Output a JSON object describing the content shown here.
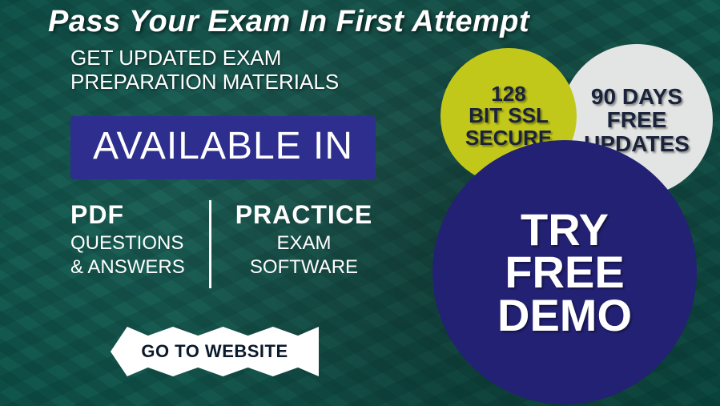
{
  "colors": {
    "accent_blue": "#2e2e8f",
    "demo_blue": "#232173",
    "ssl_yellow": "#c2c81a",
    "updates_gray": "#e2e5e3",
    "text_white": "#ffffff",
    "text_dark_navy": "#1a233b",
    "ribbon_white": "#ffffff",
    "bg_dark_teal": "#0a3a3a"
  },
  "headline": "Pass Your Exam In First Attempt",
  "subheading": "GET UPDATED EXAM PREPARATION MATERIALS",
  "available_in_label": "AVAILABLE IN",
  "formats": {
    "pdf": {
      "title": "PDF",
      "line1": "QUESTIONS",
      "line2": "& ANSWERS"
    },
    "practice": {
      "title": "PRACTICE",
      "line1": "EXAM",
      "line2": "SOFTWARE"
    }
  },
  "cta_button": "GO TO WEBSITE",
  "badges": {
    "ssl": "128\nBIT SSL\nSECURE",
    "updates": "90 DAYS\nFREE\nUPDATES",
    "demo": "TRY\nFREE\nDEMO"
  },
  "styling": {
    "headline_fontsize": 38,
    "subhead_fontsize": 26,
    "available_fontsize": 48,
    "format_title_fontsize": 32,
    "format_line_fontsize": 24,
    "cta_fontsize": 22,
    "ssl_fontsize": 26,
    "updates_fontsize": 28,
    "demo_fontsize": 56,
    "ssl_diameter": 170,
    "updates_diameter": 190,
    "demo_diameter": 330
  }
}
